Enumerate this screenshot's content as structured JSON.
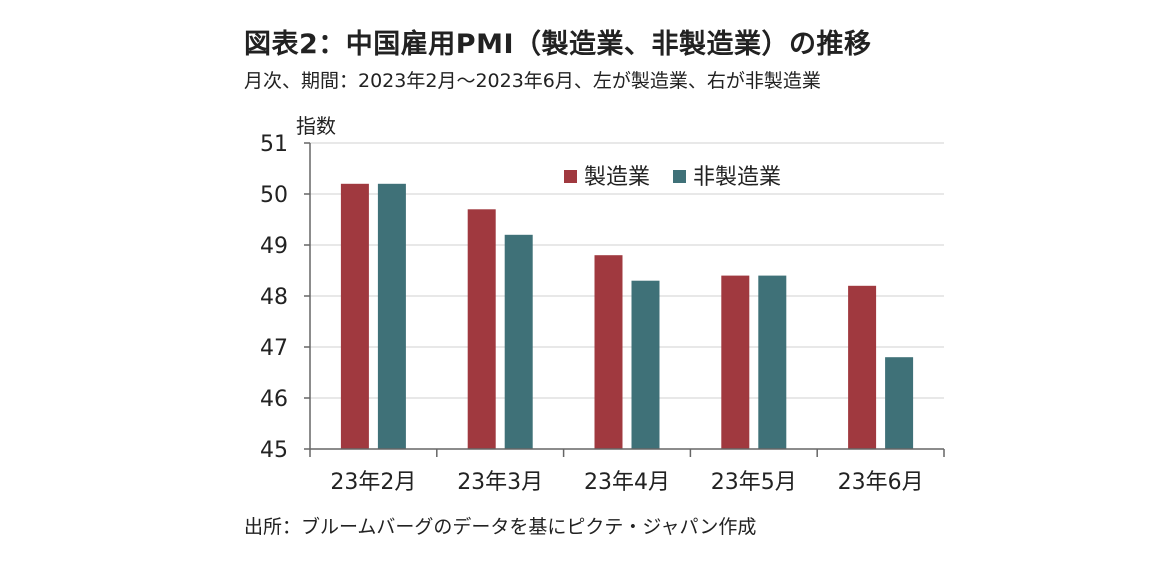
{
  "header": {
    "title": "図表2：中国雇用PMI（製造業、非製造業）の推移",
    "subtitle": "月次、期間：2023年2月～2023年6月、左が製造業、右が非製造業"
  },
  "footer": {
    "source": "出所：ブルームバーグのデータを基にピクテ・ジャパン作成"
  },
  "chart_data": {
    "type": "bar",
    "title": "図表2：中国雇用PMI（製造業、非製造業）の推移",
    "subtitle": "月次、期間：2023年2月～2023年6月、左が製造業、右が非製造業",
    "ylabel": "指数",
    "xlabel": "",
    "categories": [
      "23年2月",
      "23年3月",
      "23年4月",
      "23年5月",
      "23年6月"
    ],
    "series": [
      {
        "name": "製造業",
        "color": "#A0393F",
        "values": [
          50.2,
          49.7,
          48.8,
          48.4,
          48.2
        ]
      },
      {
        "name": "非製造業",
        "color": "#3F7178",
        "values": [
          50.2,
          49.2,
          48.3,
          48.4,
          46.8
        ]
      }
    ],
    "ylim": [
      45,
      51
    ],
    "yticks": [
      45,
      46,
      47,
      48,
      49,
      50,
      51
    ],
    "grid": true,
    "legend_position": "top-right"
  }
}
